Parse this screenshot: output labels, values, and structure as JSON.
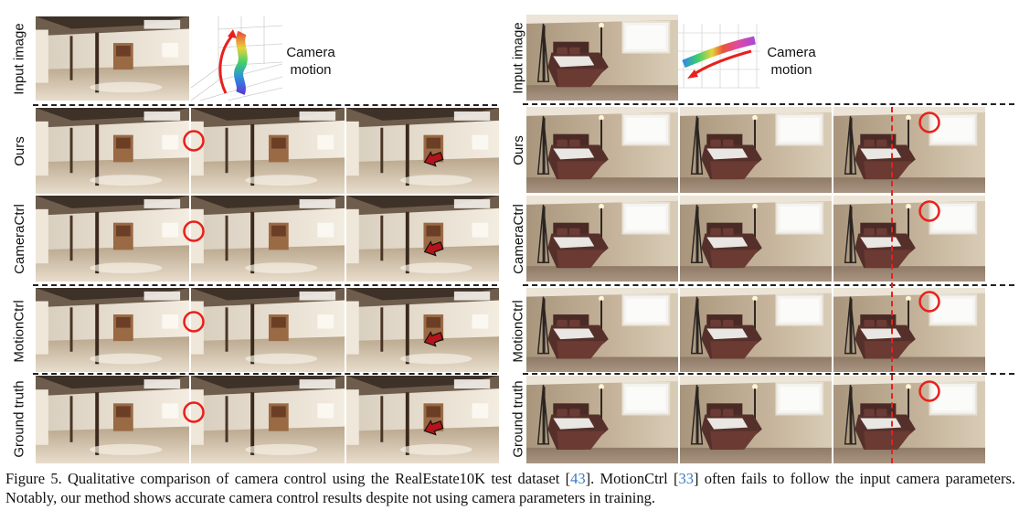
{
  "left_panel": {
    "input_label": "Input image",
    "camera_label": "Camera",
    "motion_label": "motion",
    "rows": [
      {
        "label": "Ours"
      },
      {
        "label": "CameraCtrl"
      },
      {
        "label": "MotionCtrl"
      },
      {
        "label": "Ground truth"
      }
    ]
  },
  "right_panel": {
    "input_label": "Input image",
    "camera_label": "Camera",
    "motion_label": "motion",
    "rows": [
      {
        "label": "Ours"
      },
      {
        "label": "CameraCtrl"
      },
      {
        "label": "MotionCtrl"
      },
      {
        "label": "Ground truth"
      }
    ]
  },
  "caption": {
    "prefix": "Figure 5. Qualitative comparison of camera control using the RealEstate10K test dataset [",
    "ref1": "43",
    "mid": "]. MotionCtrl [",
    "ref2": "33",
    "suffix": "] often fails to follow the input camera parameters. Notably, our method shows accurate camera control results despite not using camera parameters in training."
  },
  "colors": {
    "annotation": "#e8201c",
    "arrow_fill": "#b4141a",
    "reference_link": "#3a78c2"
  },
  "icons": [
    "red-circle-marker",
    "red-arrow-marker",
    "red-dashed-vertical-line",
    "trajectory-arrow"
  ]
}
